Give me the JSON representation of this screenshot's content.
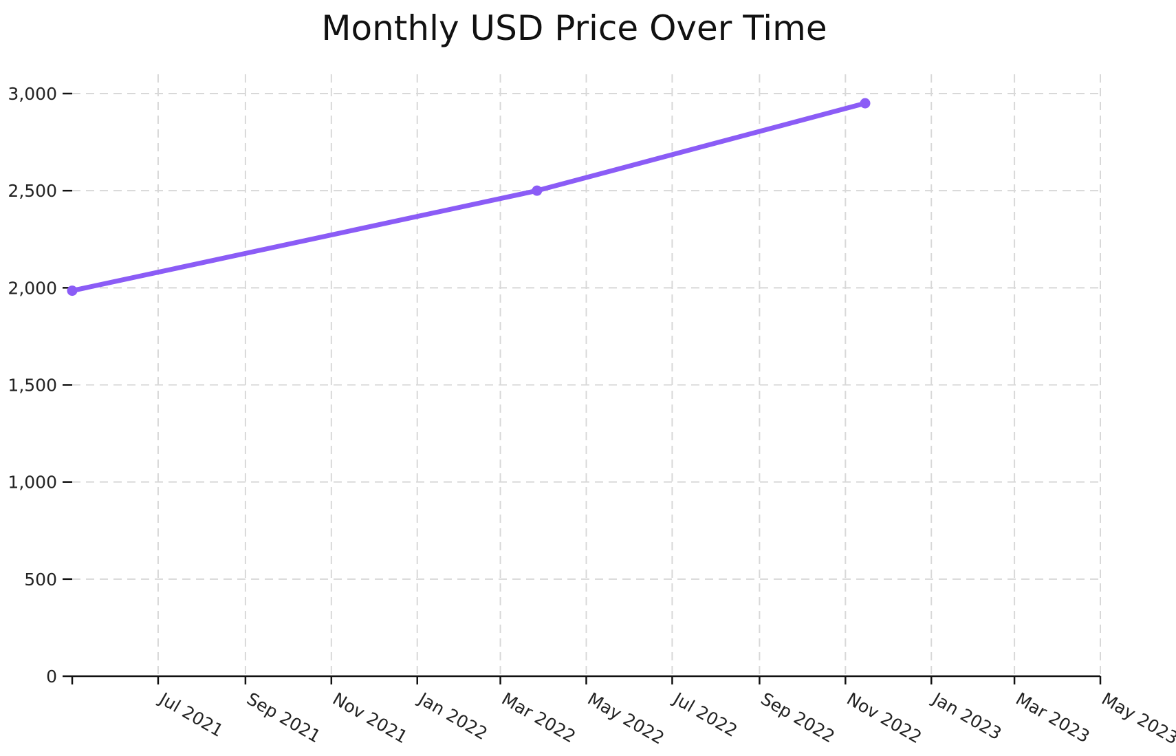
{
  "chart_data": {
    "type": "line",
    "title": "Monthly USD Price Over Time",
    "xlabel": "",
    "ylabel": "",
    "x_axis": {
      "kind": "date",
      "range": [
        "2021-05-01",
        "2023-05-01"
      ],
      "ticks": [
        {
          "date": "2021-05-01",
          "label": ""
        },
        {
          "date": "2021-07-01",
          "label": "Jul 2021"
        },
        {
          "date": "2021-09-01",
          "label": "Sep 2021"
        },
        {
          "date": "2021-11-01",
          "label": "Nov 2021"
        },
        {
          "date": "2022-01-01",
          "label": "Jan 2022"
        },
        {
          "date": "2022-03-01",
          "label": "Mar 2022"
        },
        {
          "date": "2022-05-01",
          "label": "May 2022"
        },
        {
          "date": "2022-07-01",
          "label": "Jul 2022"
        },
        {
          "date": "2022-09-01",
          "label": "Sep 2022"
        },
        {
          "date": "2022-11-01",
          "label": "Nov 2022"
        },
        {
          "date": "2023-01-01",
          "label": "Jan 2023"
        },
        {
          "date": "2023-03-01",
          "label": "Mar 2023"
        },
        {
          "date": "2023-05-01",
          "label": "May 2023"
        }
      ]
    },
    "y_axis": {
      "ylim": [
        0,
        3000
      ],
      "ticks": [
        {
          "value": 0,
          "label": "0"
        },
        {
          "value": 500,
          "label": "500"
        },
        {
          "value": 1000,
          "label": "1,000"
        },
        {
          "value": 1500,
          "label": "1,500"
        },
        {
          "value": 2000,
          "label": "2,000"
        },
        {
          "value": 2500,
          "label": "2,500"
        },
        {
          "value": 3000,
          "label": "3,000"
        }
      ]
    },
    "grid": true,
    "legend": "none",
    "series": [
      {
        "color": "#8b5cf6",
        "points": [
          {
            "x": "2021-05-01",
            "y": 1985
          },
          {
            "x": "2022-03-27",
            "y": 2500
          },
          {
            "x": "2022-11-15",
            "y": 2950
          }
        ]
      }
    ]
  }
}
